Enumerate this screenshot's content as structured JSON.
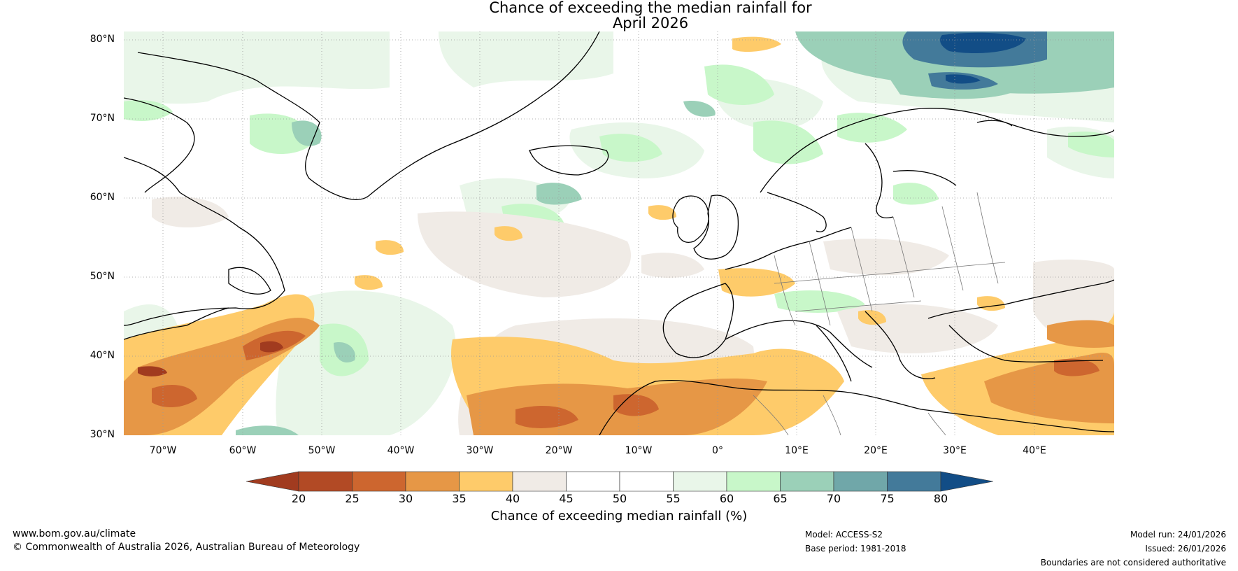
{
  "title": {
    "line1": "Chance of exceeding the median rainfall for",
    "line2": "April 2026"
  },
  "map": {
    "region": "North Atlantic and Europe",
    "lat_range": [
      30,
      80
    ],
    "lon_range": [
      -75,
      50
    ],
    "lat_labels": [
      "30°N",
      "40°N",
      "50°N",
      "60°N",
      "70°N",
      "80°N"
    ],
    "lon_labels": [
      "70°W",
      "60°W",
      "50°W",
      "40°W",
      "30°W",
      "20°W",
      "10°W",
      "0°",
      "10°E",
      "20°E",
      "30°E",
      "40°E"
    ],
    "grid": "dotted"
  },
  "legend": {
    "label": "Chance of exceeding median rainfall (%)",
    "ticks": [
      "20",
      "25",
      "30",
      "35",
      "40",
      "45",
      "50",
      "55",
      "60",
      "65",
      "70",
      "75",
      "80"
    ],
    "colors": [
      "#a13b1f",
      "#b24a25",
      "#cd662f",
      "#e69746",
      "#fecb6a",
      "#f0ebe6",
      "#ffffff",
      "#ffffff",
      "#e9f6e9",
      "#c8f7c9",
      "#9bd0b8",
      "#70a7a9",
      "#437a9a",
      "#124d86"
    ]
  },
  "footer": {
    "url": "www.bom.gov.au/climate",
    "copyright": "© Commonwealth of Australia 2026, Australian Bureau of Meteorology",
    "model": "Model: ACCESS-S2",
    "base_period": "Base period: 1981-2018",
    "model_run": "Model run: 24/01/2026",
    "issued": "Issued: 26/01/2026",
    "disclaimer": "Boundaries are not considered authoritative"
  }
}
